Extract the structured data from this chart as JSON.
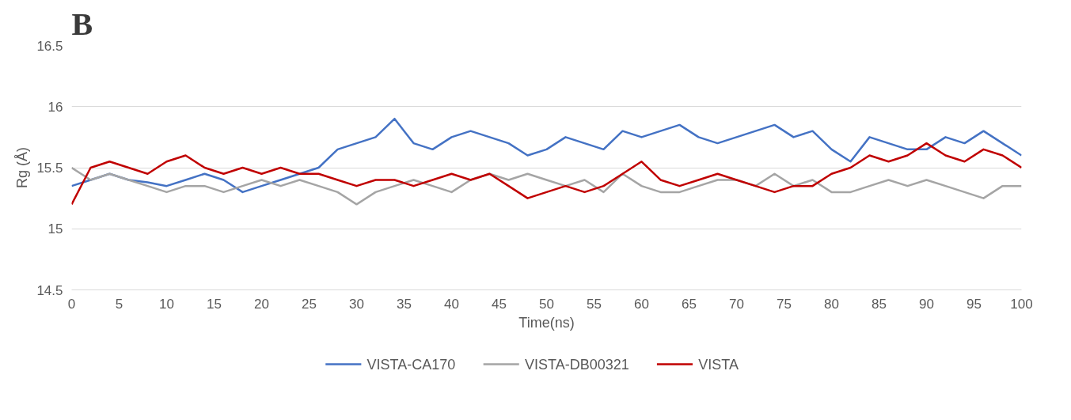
{
  "chart_data": {
    "type": "line",
    "title": "B",
    "xlabel": "Time(ns)",
    "ylabel": "Rg (Å)",
    "x": [
      0,
      2,
      4,
      6,
      8,
      10,
      12,
      14,
      16,
      18,
      20,
      22,
      24,
      26,
      28,
      30,
      32,
      34,
      36,
      38,
      40,
      42,
      44,
      46,
      48,
      50,
      52,
      54,
      56,
      58,
      60,
      62,
      64,
      66,
      68,
      70,
      72,
      74,
      76,
      78,
      80,
      82,
      84,
      86,
      88,
      90,
      92,
      94,
      96,
      98,
      100
    ],
    "series": [
      {
        "name": "VISTA-CA170",
        "color": "#4472c4",
        "values": [
          15.35,
          15.4,
          15.45,
          15.4,
          15.38,
          15.35,
          15.4,
          15.45,
          15.4,
          15.3,
          15.35,
          15.4,
          15.45,
          15.5,
          15.65,
          15.7,
          15.75,
          15.9,
          15.7,
          15.65,
          15.75,
          15.8,
          15.75,
          15.7,
          15.6,
          15.65,
          15.75,
          15.7,
          15.65,
          15.8,
          15.75,
          15.8,
          15.85,
          15.75,
          15.7,
          15.75,
          15.8,
          15.85,
          15.75,
          15.8,
          15.65,
          15.55,
          15.75,
          15.7,
          15.65,
          15.65,
          15.75,
          15.7,
          15.8,
          15.7,
          15.6
        ]
      },
      {
        "name": "VISTA-DB00321",
        "color": "#a5a5a5",
        "values": [
          15.5,
          15.4,
          15.45,
          15.4,
          15.35,
          15.3,
          15.35,
          15.35,
          15.3,
          15.35,
          15.4,
          15.35,
          15.4,
          15.35,
          15.3,
          15.2,
          15.3,
          15.35,
          15.4,
          15.35,
          15.3,
          15.4,
          15.45,
          15.4,
          15.45,
          15.4,
          15.35,
          15.4,
          15.3,
          15.45,
          15.35,
          15.3,
          15.3,
          15.35,
          15.4,
          15.4,
          15.35,
          15.45,
          15.35,
          15.4,
          15.3,
          15.3,
          15.35,
          15.4,
          15.35,
          15.4,
          15.35,
          15.3,
          15.25,
          15.35,
          15.35
        ]
      },
      {
        "name": "VISTA",
        "color": "#c00000",
        "values": [
          15.2,
          15.5,
          15.55,
          15.5,
          15.45,
          15.55,
          15.6,
          15.5,
          15.45,
          15.5,
          15.45,
          15.5,
          15.45,
          15.45,
          15.4,
          15.35,
          15.4,
          15.4,
          15.35,
          15.4,
          15.45,
          15.4,
          15.45,
          15.35,
          15.25,
          15.3,
          15.35,
          15.3,
          15.35,
          15.45,
          15.55,
          15.4,
          15.35,
          15.4,
          15.45,
          15.4,
          15.35,
          15.3,
          15.35,
          15.35,
          15.45,
          15.5,
          15.6,
          15.55,
          15.6,
          15.7,
          15.6,
          15.55,
          15.65,
          15.6,
          15.5
        ]
      }
    ],
    "xlim": [
      0,
      100
    ],
    "xticks": [
      0,
      5,
      10,
      15,
      20,
      25,
      30,
      35,
      40,
      45,
      50,
      55,
      60,
      65,
      70,
      75,
      80,
      85,
      90,
      95,
      100
    ],
    "ylim": [
      14.5,
      16.5
    ],
    "yticks": [
      14.5,
      15,
      15.5,
      16,
      16.5
    ],
    "grid": "y",
    "legend": "bottom",
    "marker": "none",
    "line_style": "solid"
  }
}
